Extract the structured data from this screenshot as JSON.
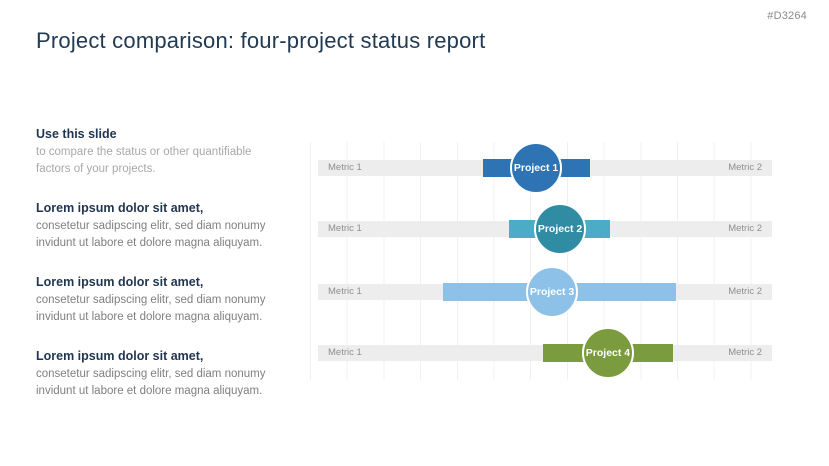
{
  "page": {
    "code": "#D3264",
    "title": "Project comparison: four-project status report"
  },
  "sidebar": {
    "blocks": [
      {
        "heading": "Use this slide",
        "body": "to compare the status or other quantifiable factors of your projects."
      },
      {
        "heading": "Lorem ipsum dolor sit amet,",
        "body": "consetetur sadipscing elitr, sed diam nonumy invidunt ut labore et dolore magna aliquyam."
      },
      {
        "heading": "Lorem ipsum dolor sit amet,",
        "body": "consetetur sadipscing elitr, sed diam nonumy invidunt ut labore et dolore magna aliquyam."
      },
      {
        "heading": "Lorem ipsum dolor sit amet,",
        "body": "consetetur sadipscing elitr, sed diam nonumy invidunt ut labore et dolore magna aliquyam."
      }
    ]
  },
  "chart_data": {
    "type": "bar",
    "orientation": "horizontal-range",
    "track_color": "#EDEDED",
    "grid": true,
    "rows": [
      {
        "label": "Project 1",
        "metric_left": "Metric 1",
        "metric_right": "Metric 2",
        "bar_start_pct": 36.8,
        "bar_end_pct": 59.6,
        "circle_center_pct": 48.1,
        "bar_color": "#2E74B5",
        "circle_color": "#2E74B5"
      },
      {
        "label": "Project 2",
        "metric_left": "Metric 1",
        "metric_right": "Metric 2",
        "bar_start_pct": 42.3,
        "bar_end_pct": 63.8,
        "circle_center_pct": 53.2,
        "bar_color": "#4BACC6",
        "circle_color": "#2F8CA3"
      },
      {
        "label": "Project 3",
        "metric_left": "Metric 1",
        "metric_right": "Metric 2",
        "bar_start_pct": 28.3,
        "bar_end_pct": 77.9,
        "circle_center_pct": 51.5,
        "bar_color": "#8DC1E8",
        "circle_color": "#8DC1E8"
      },
      {
        "label": "Project 4",
        "metric_left": "Metric 1",
        "metric_right": "Metric 2",
        "bar_start_pct": 49.6,
        "bar_end_pct": 77.2,
        "circle_center_pct": 63.4,
        "bar_color": "#7A9C3E",
        "circle_color": "#7A9C3E"
      }
    ]
  }
}
